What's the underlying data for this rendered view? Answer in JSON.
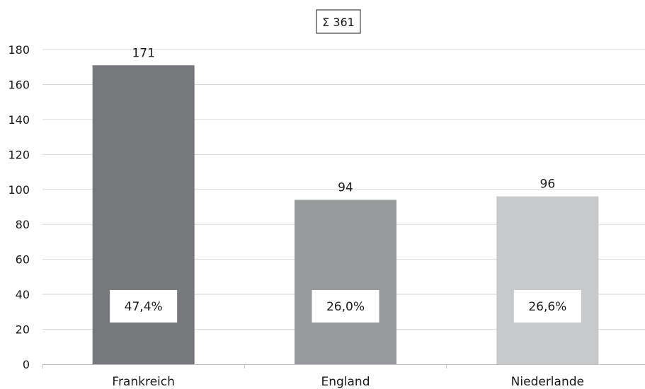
{
  "chart_data": {
    "type": "bar",
    "title": "Σ 361",
    "categories": [
      "Frankreich",
      "England",
      "Niederlande"
    ],
    "values": [
      171,
      94,
      96
    ],
    "percent_labels": [
      "47,4%",
      "26,0%",
      "26,6%"
    ],
    "bar_colors": [
      "#77787b",
      "#98999d",
      "#c7c8ca"
    ],
    "ylim": [
      0,
      180
    ],
    "yticks": [
      0,
      20,
      40,
      60,
      80,
      100,
      120,
      140,
      160,
      180
    ],
    "grid": true,
    "xlabel": "",
    "ylabel": ""
  }
}
